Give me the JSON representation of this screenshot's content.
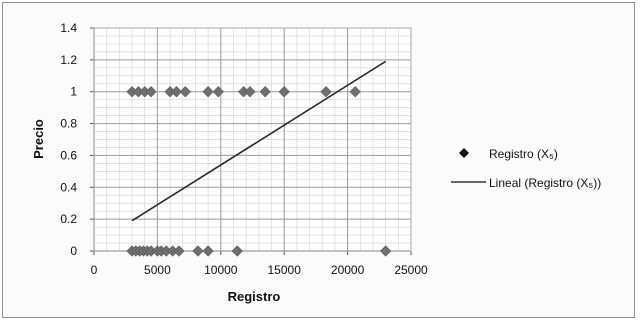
{
  "chart_data": {
    "type": "scatter",
    "title": "",
    "xlabel": "Registro",
    "ylabel": "Precio",
    "xlim": [
      0,
      25000
    ],
    "ylim": [
      0,
      1.4
    ],
    "x_ticks": [
      0,
      5000,
      10000,
      15000,
      20000,
      25000
    ],
    "y_ticks": [
      0,
      0.2,
      0.4,
      0.6,
      0.8,
      1,
      1.2,
      1.4
    ],
    "x_tick_labels": [
      "0",
      "5000",
      "10000",
      "15000",
      "20000",
      "25000"
    ],
    "y_tick_labels": [
      "0",
      "0.2",
      "0.4",
      "0.6",
      "0.8",
      "1",
      "1.2",
      "1.4"
    ],
    "grid": true,
    "legend_position": "right",
    "series": [
      {
        "name": "Registro (X₅)",
        "kind": "markers",
        "marker": "diamond",
        "color": "#6f6f6f",
        "points": [
          {
            "x": 3000,
            "y": 1
          },
          {
            "x": 3500,
            "y": 1
          },
          {
            "x": 4000,
            "y": 1
          },
          {
            "x": 4500,
            "y": 1
          },
          {
            "x": 6000,
            "y": 1
          },
          {
            "x": 6500,
            "y": 1
          },
          {
            "x": 7200,
            "y": 1
          },
          {
            "x": 9000,
            "y": 1
          },
          {
            "x": 9800,
            "y": 1
          },
          {
            "x": 11800,
            "y": 1
          },
          {
            "x": 12300,
            "y": 1
          },
          {
            "x": 13500,
            "y": 1
          },
          {
            "x": 15000,
            "y": 1
          },
          {
            "x": 18300,
            "y": 1
          },
          {
            "x": 20600,
            "y": 1
          },
          {
            "x": 3000,
            "y": 0
          },
          {
            "x": 3300,
            "y": 0
          },
          {
            "x": 3600,
            "y": 0
          },
          {
            "x": 3900,
            "y": 0
          },
          {
            "x": 4200,
            "y": 0
          },
          {
            "x": 4500,
            "y": 0
          },
          {
            "x": 5000,
            "y": 0
          },
          {
            "x": 5300,
            "y": 0
          },
          {
            "x": 5700,
            "y": 0
          },
          {
            "x": 6200,
            "y": 0
          },
          {
            "x": 6700,
            "y": 0
          },
          {
            "x": 8200,
            "y": 0
          },
          {
            "x": 9000,
            "y": 0
          },
          {
            "x": 11300,
            "y": 0
          },
          {
            "x": 23000,
            "y": 0
          }
        ]
      },
      {
        "name": "Lineal (Registro (X₅))",
        "kind": "line",
        "color": "#2b2b2b",
        "points": [
          {
            "x": 3000,
            "y": 0.19
          },
          {
            "x": 23000,
            "y": 1.19
          }
        ]
      }
    ]
  }
}
